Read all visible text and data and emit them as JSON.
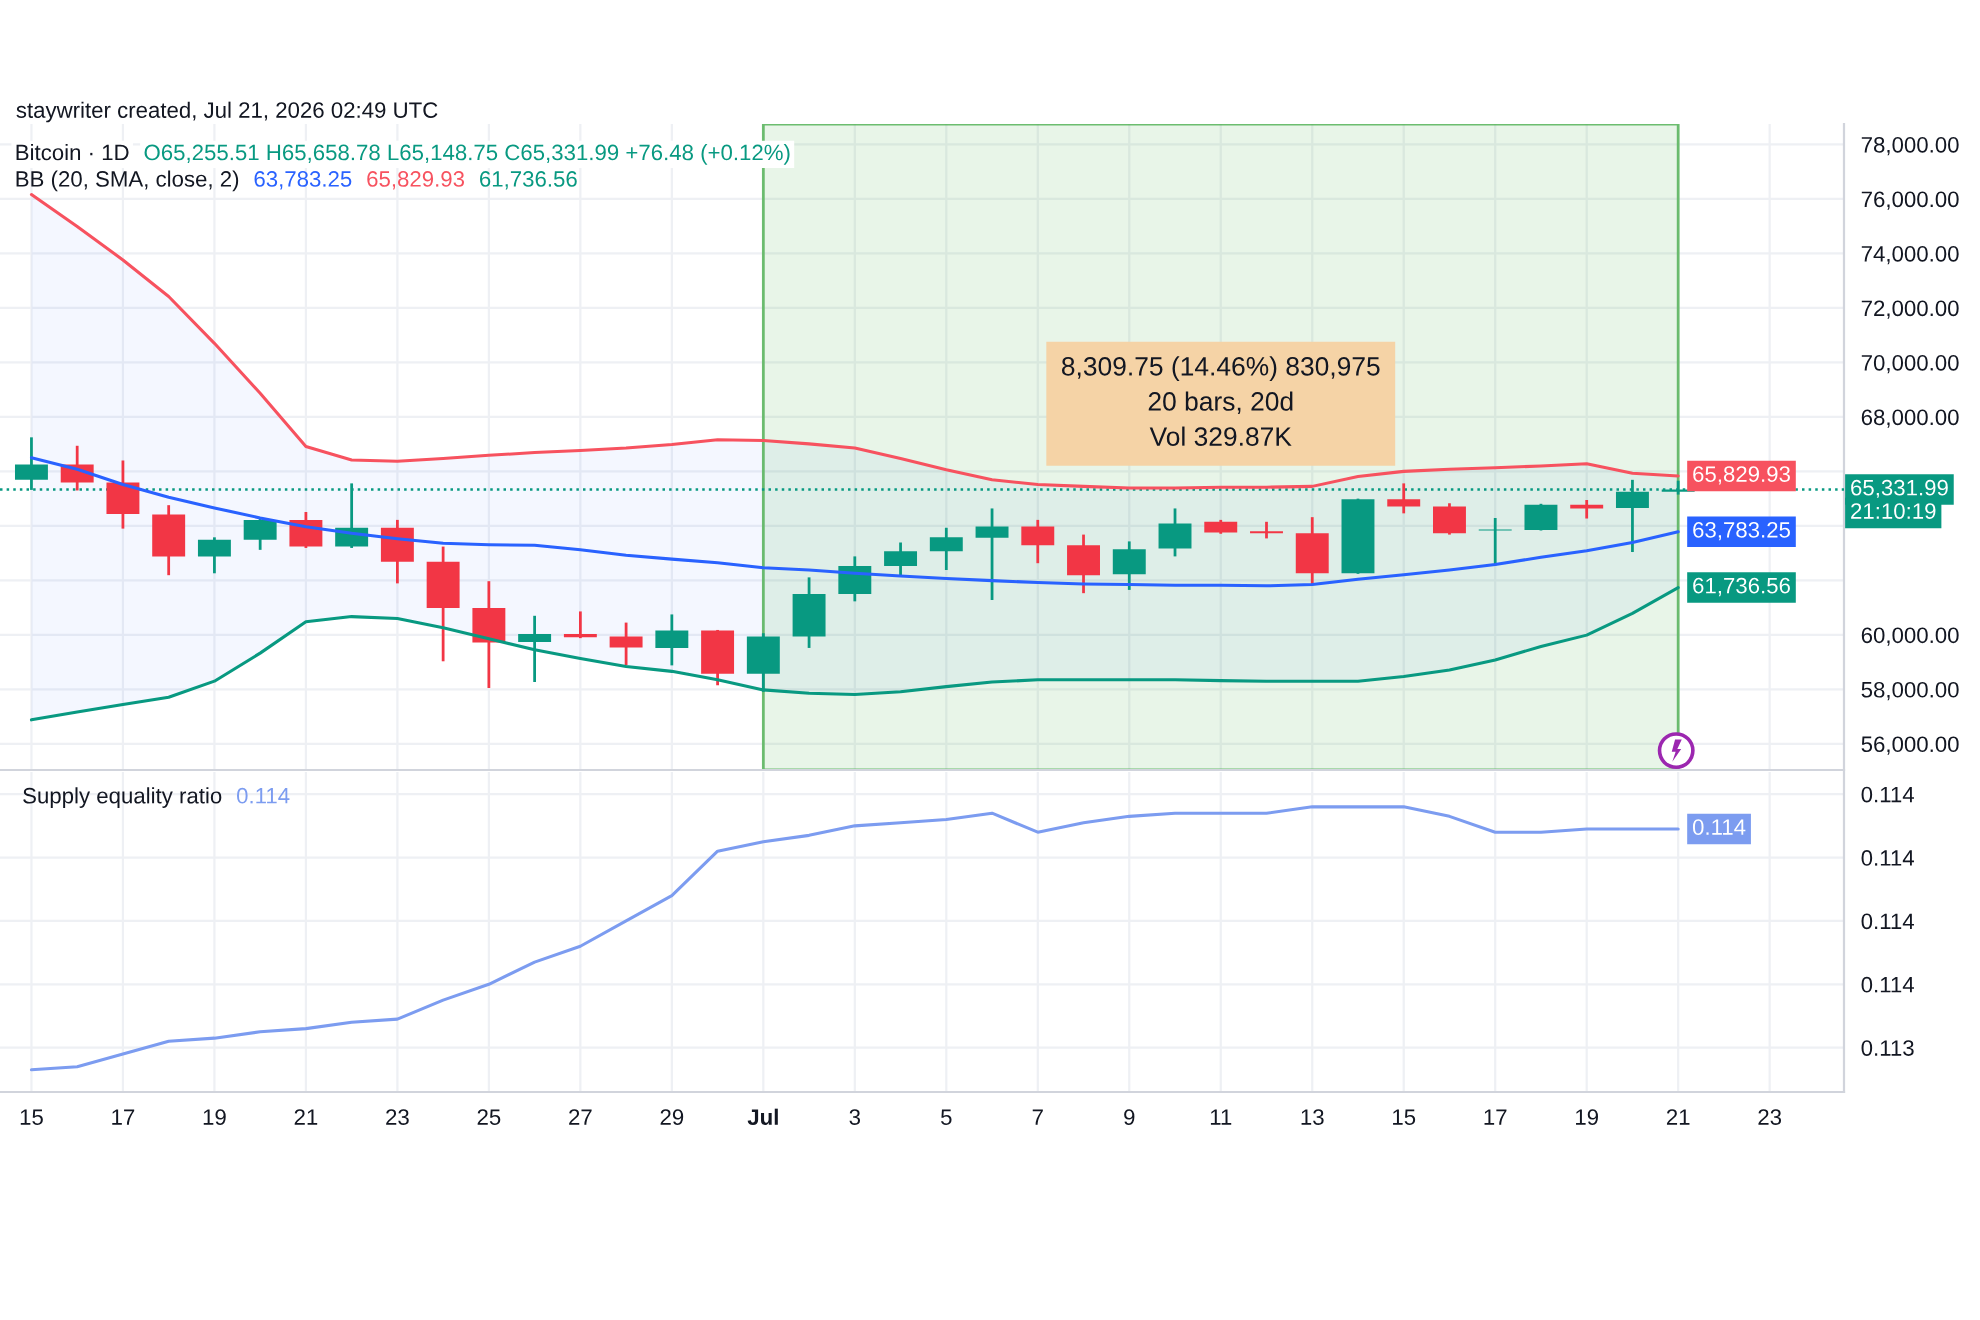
{
  "chart_data": [
    {
      "type": "candlestick",
      "title": "Bitcoin · 1D",
      "annotations": [
        "staywriter created, Jul 21, 2026 02:49 UTC",
        "O65,255.51 H65,658.78 L65,148.75 C65,331.99 +76.48 (+0.12%)",
        "BB (20, SMA, close, 2)",
        "8,309.75 (14.46%) 830,975\n20 bars, 20d\nVol 329.87K",
        "21:10:19"
      ],
      "x": [
        "2026-06-15",
        "2026-06-16",
        "2026-06-17",
        "2026-06-18",
        "2026-06-19",
        "2026-06-20",
        "2026-06-21",
        "2026-06-22",
        "2026-06-23",
        "2026-06-24",
        "2026-06-25",
        "2026-06-26",
        "2026-06-27",
        "2026-06-28",
        "2026-06-29",
        "2026-06-30",
        "2026-07-01",
        "2026-07-02",
        "2026-07-03",
        "2026-07-04",
        "2026-07-05",
        "2026-07-06",
        "2026-07-07",
        "2026-07-08",
        "2026-07-09",
        "2026-07-10",
        "2026-07-11",
        "2026-07-12",
        "2026-07-13",
        "2026-07-14",
        "2026-07-15",
        "2026-07-16",
        "2026-07-17",
        "2026-07-18",
        "2026-07-19",
        "2026-07-20",
        "2026-07-21"
      ],
      "ohlc": [
        [
          65690,
          67250,
          65320,
          66250
        ],
        [
          66250,
          66940,
          65300,
          65590
        ],
        [
          65590,
          66400,
          63900,
          64440
        ],
        [
          64420,
          64760,
          62190,
          62880
        ],
        [
          62880,
          63580,
          62260,
          63490
        ],
        [
          63490,
          64290,
          63120,
          64220
        ],
        [
          64220,
          64510,
          63190,
          63240
        ],
        [
          63240,
          65560,
          63190,
          63930
        ],
        [
          63930,
          64220,
          61890,
          62680
        ],
        [
          62680,
          63240,
          59030,
          60990
        ],
        [
          60990,
          61970,
          58050,
          59720
        ],
        [
          59740,
          60700,
          58270,
          60030
        ],
        [
          60030,
          60860,
          59880,
          59910
        ],
        [
          59940,
          60450,
          58880,
          59540
        ],
        [
          59520,
          60750,
          58880,
          60160
        ],
        [
          60160,
          60180,
          58150,
          58570
        ],
        [
          58570,
          60060,
          57910,
          59940
        ],
        [
          59940,
          62110,
          59520,
          61500
        ],
        [
          61500,
          62880,
          61230,
          62530
        ],
        [
          62530,
          63390,
          62190,
          63070
        ],
        [
          63070,
          63930,
          62380,
          63580
        ],
        [
          63560,
          64640,
          61280,
          63980
        ],
        [
          63980,
          64220,
          62630,
          63290
        ],
        [
          63290,
          63680,
          61530,
          62190
        ],
        [
          62220,
          63430,
          61650,
          63140
        ],
        [
          63170,
          64640,
          62880,
          64090
        ],
        [
          64150,
          64220,
          63710,
          63760
        ],
        [
          63800,
          64150,
          63540,
          63730
        ],
        [
          63730,
          64320,
          61850,
          62260
        ],
        [
          62260,
          65000,
          62240,
          64980
        ],
        [
          64980,
          65560,
          64460,
          64710
        ],
        [
          64710,
          64830,
          63680,
          63730
        ],
        [
          63830,
          64290,
          62550,
          63870
        ],
        [
          63850,
          64810,
          63830,
          64780
        ],
        [
          64780,
          64950,
          64270,
          64640
        ],
        [
          64660,
          65690,
          63040,
          65255.51
        ],
        [
          65255.51,
          65658.78,
          65148.75,
          65331.99
        ]
      ],
      "colors": [
        "#089981",
        "#f23645",
        "#f23645",
        "#f23645",
        "#089981",
        "#089981",
        "#f23645",
        "#089981",
        "#f23645",
        "#f23645",
        "#f23645",
        "#089981",
        "#f23645",
        "#f23645",
        "#089981",
        "#f23645",
        "#089981",
        "#089981",
        "#089981",
        "#089981",
        "#089981",
        "#089981",
        "#f23645",
        "#f23645",
        "#089981",
        "#089981",
        "#f23645",
        "#f23645",
        "#f23645",
        "#089981",
        "#f23645",
        "#f23645",
        "#089981",
        "#089981",
        "#f23645",
        "#089981",
        "#089981"
      ],
      "series": [
        {
          "type": "line",
          "color": "#2962ff",
          "values": [
            66500,
            66080,
            65520,
            65050,
            64660,
            64290,
            63970,
            63730,
            63530,
            63360,
            63310,
            63290,
            63120,
            62920,
            62780,
            62650,
            62460,
            62380,
            62260,
            62160,
            62070,
            61990,
            61920,
            61870,
            61850,
            61820,
            61820,
            61800,
            61850,
            62040,
            62210,
            62380,
            62580,
            62850,
            63090,
            63390,
            63783.25
          ],
          "lower": [
            56880,
            57170,
            57440,
            57710,
            58300,
            59330,
            60480,
            60670,
            60600,
            60260,
            59860,
            59450,
            59130,
            58840,
            58660,
            58350,
            57980,
            57860,
            57810,
            57910,
            58100,
            58270,
            58350,
            58350,
            58350,
            58350,
            58320,
            58300,
            58300,
            58300,
            58470,
            58710,
            59080,
            59570,
            59990,
            60790,
            61736.56
          ],
          "upper": [
            76160,
            74990,
            73760,
            72420,
            70700,
            68870,
            66910,
            66420,
            66370,
            66470,
            66590,
            66690,
            66770,
            66860,
            66990,
            67160,
            67130,
            67010,
            66860,
            66470,
            66060,
            65690,
            65520,
            65450,
            65390,
            65390,
            65420,
            65420,
            65450,
            65810,
            66000,
            66080,
            66130,
            66200,
            66280,
            65930,
            65829.93
          ],
          "value_labels": [
            null,
            null,
            null,
            null,
            null,
            null,
            null,
            null,
            null,
            null,
            null,
            null,
            null,
            null,
            null,
            null,
            null,
            null,
            null,
            null,
            null,
            null,
            null,
            null,
            null,
            null,
            null,
            null,
            null,
            null,
            null,
            null,
            null,
            null,
            null,
            null,
            "63,783.25"
          ]
        },
        {
          "type": "line",
          "color": "#f7525f",
          "values": [
            76160,
            74990,
            73760,
            72420,
            70700,
            68870,
            66910,
            66420,
            66370,
            66470,
            66590,
            66690,
            66770,
            66860,
            66990,
            67160,
            67130,
            67010,
            66860,
            66470,
            66060,
            65690,
            65520,
            65450,
            65390,
            65390,
            65420,
            65420,
            65450,
            65810,
            66000,
            66080,
            66130,
            66200,
            66280,
            65930,
            65829.93
          ],
          "value_labels": [
            null,
            null,
            null,
            null,
            null,
            null,
            null,
            null,
            null,
            null,
            null,
            null,
            null,
            null,
            null,
            null,
            null,
            null,
            null,
            null,
            null,
            null,
            null,
            null,
            null,
            null,
            null,
            null,
            null,
            null,
            null,
            null,
            null,
            null,
            null,
            null,
            "65,829.93"
          ]
        },
        {
          "type": "line",
          "color": "#089981",
          "values": [
            56880,
            57170,
            57440,
            57710,
            58300,
            59330,
            60480,
            60670,
            60600,
            60260,
            59860,
            59450,
            59130,
            58840,
            58660,
            58350,
            57980,
            57860,
            57810,
            57910,
            58100,
            58270,
            58350,
            58350,
            58350,
            58350,
            58320,
            58300,
            58300,
            58300,
            58470,
            58710,
            59080,
            59570,
            59990,
            60790,
            61736.56
          ],
          "value_labels": [
            null,
            null,
            null,
            null,
            null,
            null,
            null,
            null,
            null,
            null,
            null,
            null,
            null,
            null,
            null,
            null,
            null,
            null,
            null,
            null,
            null,
            null,
            null,
            null,
            null,
            null,
            null,
            null,
            null,
            null,
            null,
            null,
            null,
            null,
            null,
            null,
            "61,736.56"
          ]
        }
      ],
      "ref_lines": [
        {
          "axis": "y",
          "value": 65331.99,
          "label": "65,331.99",
          "color": "#089981",
          "line_style": "dotted"
        }
      ],
      "bands": [
        {
          "axis": "x",
          "from": "2026-07-01",
          "to": "2026-07-21",
          "color": "#4caf50"
        }
      ],
      "xlim": [
        "2026-06-14T07:30",
        "2026-07-24T15:00"
      ],
      "ylim": [
        55040,
        78750
      ],
      "yticks": [
        {
          "value": 78000,
          "label": "78,000.00"
        },
        {
          "value": 76000,
          "label": "76,000.00"
        },
        {
          "value": 74000,
          "label": "74,000.00"
        },
        {
          "value": 72000,
          "label": "72,000.00"
        },
        {
          "value": 70000,
          "label": "70,000.00"
        },
        {
          "value": 68000,
          "label": "68,000.00"
        },
        {
          "value": 66000,
          "label": null
        },
        {
          "value": 64000,
          "label": null
        },
        {
          "value": 62000,
          "label": null
        },
        {
          "value": 60000,
          "label": "60,000.00"
        },
        {
          "value": 58000,
          "label": "58,000.00"
        },
        {
          "value": 56000,
          "label": "56,000.00"
        }
      ],
      "grid": true,
      "tick_labels": "y"
    },
    {
      "type": "line",
      "x": [
        "2026-06-15",
        "2026-06-16",
        "2026-06-17",
        "2026-06-18",
        "2026-06-19",
        "2026-06-20",
        "2026-06-21",
        "2026-06-22",
        "2026-06-23",
        "2026-06-24",
        "2026-06-25",
        "2026-06-26",
        "2026-06-27",
        "2026-06-28",
        "2026-06-29",
        "2026-06-30",
        "2026-07-01",
        "2026-07-02",
        "2026-07-03",
        "2026-07-04",
        "2026-07-05",
        "2026-07-06",
        "2026-07-07",
        "2026-07-08",
        "2026-07-09",
        "2026-07-10",
        "2026-07-11",
        "2026-07-12",
        "2026-07-13",
        "2026-07-14",
        "2026-07-15",
        "2026-07-16",
        "2026-07-17",
        "2026-07-18",
        "2026-07-19",
        "2026-07-20",
        "2026-07-21"
      ],
      "series": [
        {
          "name": "Supply equality ratio",
          "color": "#7c9cf0",
          "values": [
            0.11333,
            0.11334,
            0.11338,
            0.11342,
            0.11343,
            0.11345,
            0.11346,
            0.11348,
            0.11349,
            0.11355,
            0.1136,
            0.11367,
            0.11372,
            0.1138,
            0.11388,
            0.11402,
            0.11405,
            0.11407,
            0.1141,
            0.11411,
            0.11412,
            0.11414,
            0.11408,
            0.11411,
            0.11413,
            0.11414,
            0.11414,
            0.11414,
            0.11416,
            0.11416,
            0.11416,
            0.11413,
            0.11408,
            0.11408,
            0.11409,
            0.11409,
            0.11409
          ],
          "value_labels": [
            null,
            null,
            null,
            null,
            null,
            null,
            null,
            null,
            null,
            null,
            null,
            null,
            null,
            null,
            null,
            null,
            null,
            null,
            null,
            null,
            null,
            null,
            null,
            null,
            null,
            null,
            null,
            null,
            null,
            null,
            null,
            null,
            null,
            null,
            null,
            null,
            "0.114"
          ]
        }
      ],
      "xlim": [
        "2026-06-14T07:30",
        "2026-07-24T15:00"
      ],
      "xticks": [
        {
          "value": "2026-06-15",
          "label": "15"
        },
        {
          "value": "2026-06-17",
          "label": "17"
        },
        {
          "value": "2026-06-19",
          "label": "19"
        },
        {
          "value": "2026-06-21",
          "label": "21"
        },
        {
          "value": "2026-06-23",
          "label": "23"
        },
        {
          "value": "2026-06-25",
          "label": "25"
        },
        {
          "value": "2026-06-27",
          "label": "27"
        },
        {
          "value": "2026-06-29",
          "label": "29"
        },
        {
          "value": "2026-07-01",
          "label": "Jul"
        },
        {
          "value": "2026-07-03",
          "label": "3"
        },
        {
          "value": "2026-07-05",
          "label": "5"
        },
        {
          "value": "2026-07-07",
          "label": "7"
        },
        {
          "value": "2026-07-09",
          "label": "9"
        },
        {
          "value": "2026-07-11",
          "label": "11"
        },
        {
          "value": "2026-07-13",
          "label": "13"
        },
        {
          "value": "2026-07-15",
          "label": "15"
        },
        {
          "value": "2026-07-17",
          "label": "17"
        },
        {
          "value": "2026-07-19",
          "label": "19"
        },
        {
          "value": "2026-07-21",
          "label": "21"
        },
        {
          "value": "2026-07-23",
          "label": "23"
        }
      ],
      "ylim": [
        0.11326,
        0.11427
      ],
      "yticks": [
        {
          "value": 0.1142,
          "label": "0.114"
        },
        {
          "value": 0.114,
          "label": "0.114"
        },
        {
          "value": 0.1138,
          "label": "0.114"
        },
        {
          "value": 0.1136,
          "label": "0.114"
        },
        {
          "value": 0.1134,
          "label": "0.113"
        }
      ],
      "grid": true
    }
  ]
}
